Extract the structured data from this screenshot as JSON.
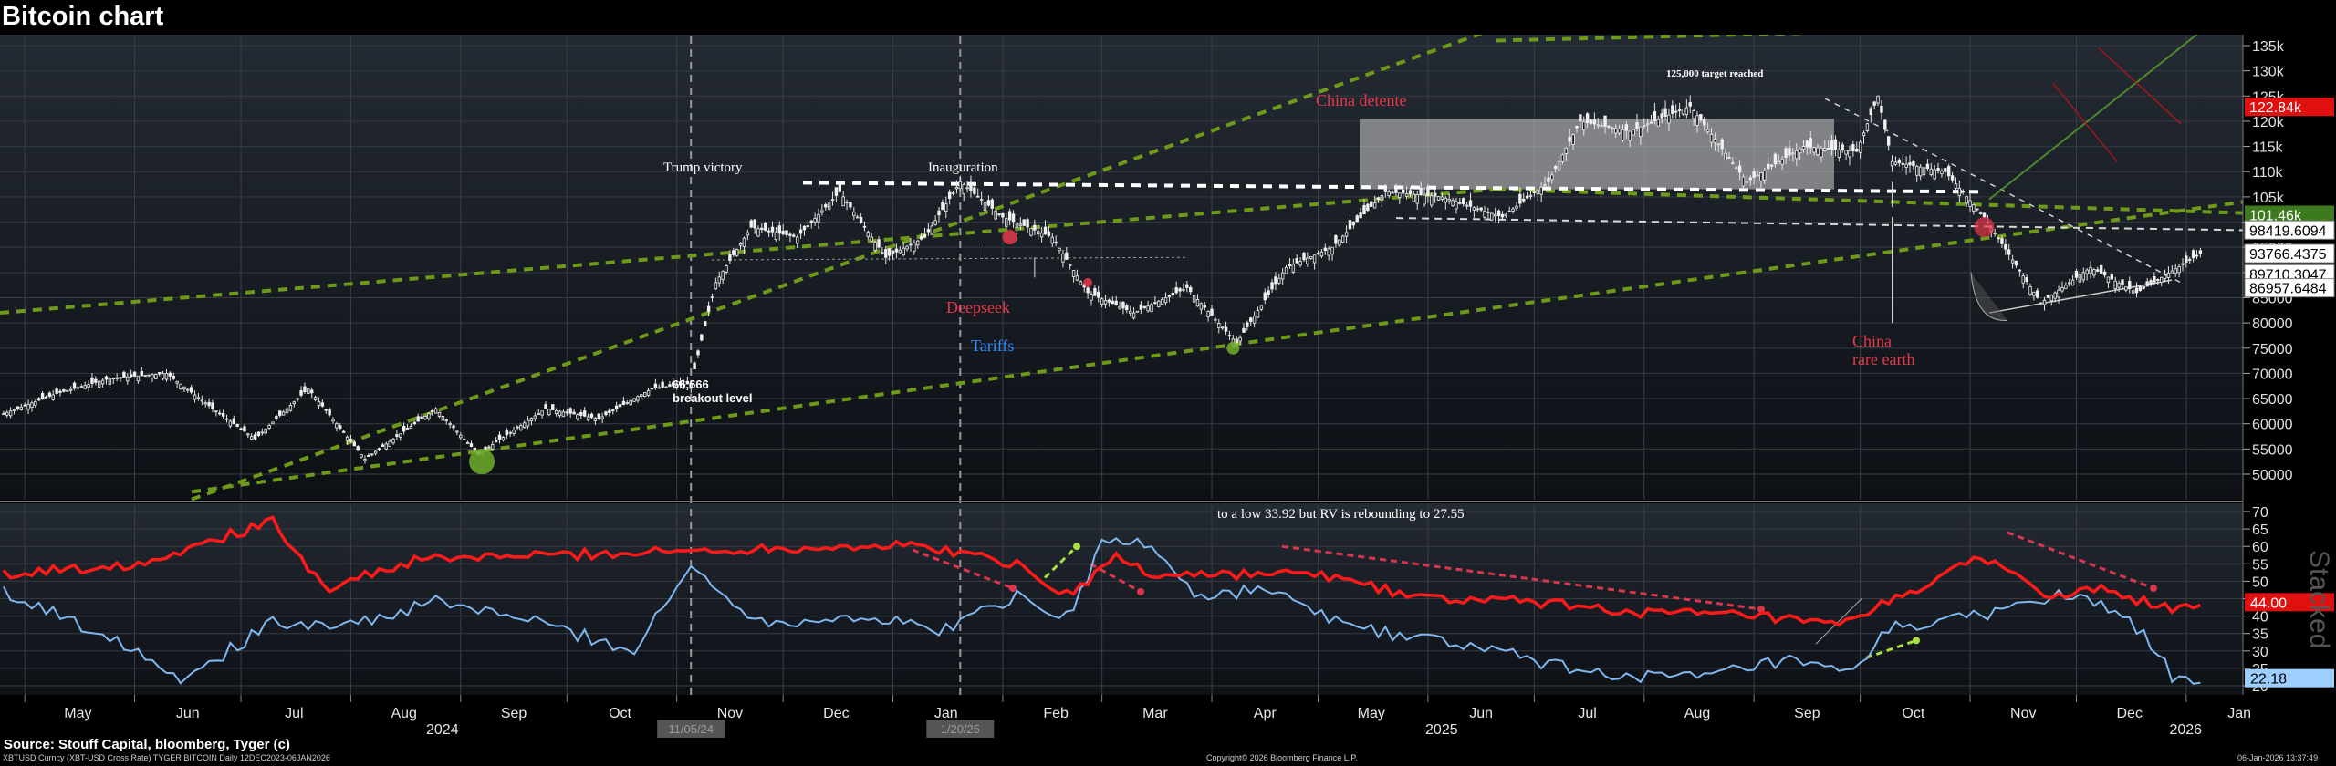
{
  "header": {
    "title": "Bitcoin chart"
  },
  "footer": {
    "source": "Source: Stouff Capital, bloomberg, Tyger (c)",
    "ticker_line": "XBTUSD Curncy (XBT-USD Cross Rate) TYGER BITCOIN Daily 12DEC2023-06JAN2026",
    "copyright": "Copyright© 2026 Bloomberg Finance L.P.",
    "timestamp": "06-Jan-2026 13:37:49"
  },
  "chart_data": [
    {
      "type": "line",
      "subtype": "candlestick",
      "series": [
        {
          "name": "",
          "x": [
            "2024-04-25",
            "2024-05-10",
            "2024-05-25",
            "2024-06-10",
            "2024-06-25",
            "2024-07-05",
            "2024-07-20",
            "2024-08-05",
            "2024-08-25",
            "2024-09-06",
            "2024-09-25",
            "2024-10-10",
            "2024-10-25",
            "2024-11-05",
            "2024-11-12",
            "2024-11-22",
            "2024-12-05",
            "2024-12-17",
            "2024-12-30",
            "2025-01-10",
            "2025-01-20",
            "2025-02-01",
            "2025-02-15",
            "2025-02-25",
            "2025-03-10",
            "2025-03-25",
            "2025-04-08",
            "2025-04-22",
            "2025-05-05",
            "2025-05-20",
            "2025-06-05",
            "2025-06-22",
            "2025-07-05",
            "2025-07-14",
            "2025-07-28",
            "2025-08-14",
            "2025-08-30",
            "2025-09-15",
            "2025-09-30",
            "2025-10-06",
            "2025-10-10",
            "2025-10-25",
            "2025-11-05",
            "2025-11-21",
            "2025-12-05",
            "2025-12-18",
            "2026-01-05"
          ],
          "values": [
            62000,
            66000,
            69000,
            70000,
            62000,
            57000,
            67000,
            53000,
            63000,
            54000,
            63000,
            61000,
            67000,
            68000,
            88000,
            99000,
            97000,
            106000,
            93000,
            97000,
            108000,
            101000,
            97000,
            86000,
            82000,
            87000,
            76000,
            91000,
            95000,
            106000,
            105000,
            101000,
            108000,
            120000,
            118000,
            123000,
            108000,
            115000,
            114000,
            125000,
            112000,
            110000,
            101000,
            84000,
            91000,
            86000,
            93766
          ]
        }
      ],
      "xlabel": "",
      "ylabel": "",
      "ylim": [
        45000,
        140000
      ],
      "y_ticks": [
        "135k",
        "130k",
        "125k",
        "120k",
        "115k",
        "110k",
        "105k",
        "100k",
        "95000",
        "90000",
        "85000",
        "80000",
        "75000",
        "70000",
        "65000",
        "60000",
        "55000",
        "50000"
      ],
      "price_tags": [
        {
          "text": "122.84k",
          "value": 122840,
          "color": "#e01010"
        },
        {
          "text": "101.46k",
          "value": 101460,
          "color": "#3d7a1e"
        },
        {
          "text": "98419.6094",
          "value": 98419.6094,
          "color": "#ffffff"
        },
        {
          "text": "93766.4375",
          "value": 93766.4375,
          "color": "#ffffff"
        },
        {
          "text": "89710.3047",
          "value": 89710.3047,
          "color": "#ffffff"
        },
        {
          "text": "86957.6484",
          "value": 86957.6484,
          "color": "#ffffff"
        }
      ],
      "annotations": [
        {
          "text": "Trump victory",
          "color": "#ffffff"
        },
        {
          "text": "Inauguration",
          "color": "#ffffff"
        },
        {
          "text": "China detente",
          "color": "#e8384a"
        },
        {
          "text": "125,000 target reached",
          "color": "#ffffff"
        },
        {
          "text": "Deepseek",
          "color": "#e8384a"
        },
        {
          "text": "Tariffs",
          "color": "#2f8cff"
        },
        {
          "text": "China",
          "color": "#e8384a"
        },
        {
          "text": "rare earth",
          "color": "#e8384a"
        },
        {
          "text": "66,666",
          "color": "#ffffff"
        },
        {
          "text": "breakout level",
          "color": "#ffffff"
        }
      ],
      "grid": true
    },
    {
      "type": "line",
      "series": [
        {
          "name": "",
          "color": "#ff1a1a",
          "x": [
            "2024-04-25",
            "2024-06-01",
            "2024-07-10",
            "2024-07-25",
            "2024-08-20",
            "2024-09-10",
            "2024-10-15",
            "2024-11-15",
            "2024-12-15",
            "2025-01-10",
            "2025-02-05",
            "2025-02-20",
            "2025-03-05",
            "2025-03-15",
            "2025-04-01",
            "2025-05-01",
            "2025-06-01",
            "2025-07-01",
            "2025-08-01",
            "2025-09-01",
            "2025-09-25",
            "2025-10-15",
            "2025-11-05",
            "2025-11-25",
            "2025-12-10",
            "2025-12-25",
            "2026-01-05"
          ],
          "values": [
            52,
            55,
            67,
            48,
            56,
            57,
            58,
            59,
            60,
            60,
            55,
            46,
            57,
            52,
            52,
            52,
            45,
            44,
            41,
            40,
            37,
            47,
            57,
            45,
            48,
            42,
            44
          ]
        },
        {
          "name": "",
          "color": "#7fb8f0",
          "x": [
            "2024-04-25",
            "2024-06-01",
            "2024-06-15",
            "2024-07-10",
            "2024-08-05",
            "2024-08-25",
            "2024-09-20",
            "2024-10-20",
            "2024-11-05",
            "2024-11-25",
            "2024-12-20",
            "2025-01-15",
            "2025-02-05",
            "2025-02-20",
            "2025-03-01",
            "2025-03-15",
            "2025-03-28",
            "2025-04-15",
            "2025-05-10",
            "2025-06-10",
            "2025-07-15",
            "2025-08-15",
            "2025-09-10",
            "2025-09-28",
            "2025-10-10",
            "2025-10-30",
            "2025-11-25",
            "2025-12-15",
            "2025-12-28",
            "2026-01-05"
          ],
          "values": [
            47,
            31,
            22,
            38,
            38,
            44,
            39,
            30,
            54,
            38,
            40,
            36,
            46,
            40,
            61,
            61,
            45,
            48,
            37,
            32,
            24,
            22,
            27,
            23,
            37,
            39,
            46,
            41,
            23,
            22
          ]
        }
      ],
      "ylim": [
        18,
        72
      ],
      "y_ticks": [
        "70",
        "65",
        "60",
        "55",
        "50",
        "45",
        "40",
        "35",
        "30",
        "25",
        "20"
      ],
      "value_tags": [
        {
          "text": "44.00",
          "value": 44.0,
          "color": "#e01010"
        },
        {
          "text": "22.18",
          "value": 22.18,
          "color": "#9ccfff"
        }
      ],
      "annotations": [
        {
          "text": "to a low 33.92 but RV is rebounding to 27.55"
        }
      ],
      "side_label": "Stacked"
    }
  ],
  "x_axis": {
    "months": [
      "May",
      "Jun",
      "Jul",
      "Aug",
      "Sep",
      "Oct",
      "Nov",
      "Dec",
      "Jan",
      "Feb",
      "Mar",
      "Apr",
      "May",
      "Jun",
      "Jul",
      "Aug",
      "Sep",
      "Oct",
      "Nov",
      "Dec",
      "Jan"
    ],
    "years": [
      "2024",
      "2025",
      "2026"
    ],
    "highlight_dates": [
      "11/05/24",
      "1/20/25"
    ]
  }
}
